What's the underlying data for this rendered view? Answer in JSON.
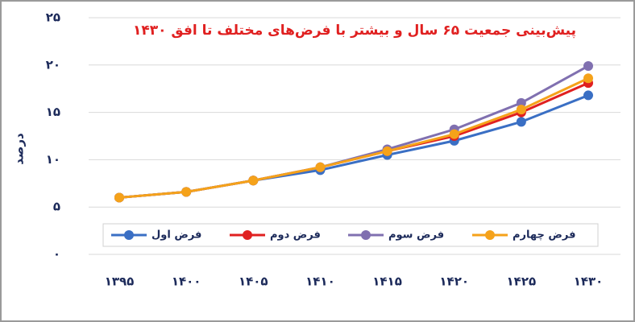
{
  "chart_data": {
    "type": "line",
    "title": "پیش‌بینی جمعیت ۶۵ سال و بیشتر با فرض‌های مختلف تا افق ۱۴۳۰",
    "y_label": "درصد",
    "categories": [
      "۱۳۹۵",
      "۱۴۰۰",
      "۱۴۰۵",
      "۱۴۱۰",
      "۱۴۱۵",
      "۱۴۲۰",
      "۱۴۲۵",
      "۱۴۳۰"
    ],
    "series": [
      {
        "name": "فرض اول",
        "color": "#3a6fc4",
        "values": [
          6.0,
          6.6,
          7.8,
          8.9,
          10.5,
          12.0,
          14.0,
          16.8
        ]
      },
      {
        "name": "فرض دوم",
        "color": "#e02020",
        "values": [
          6.0,
          6.6,
          7.8,
          9.2,
          10.9,
          12.5,
          15.0,
          18.1
        ]
      },
      {
        "name": "فرض سوم",
        "color": "#8070b0",
        "values": [
          6.0,
          6.6,
          7.8,
          9.2,
          11.1,
          13.2,
          16.0,
          19.9
        ]
      },
      {
        "name": "فرض چهارم",
        "color": "#f5a21a",
        "values": [
          6.0,
          6.6,
          7.8,
          9.2,
          10.9,
          12.7,
          15.3,
          18.6
        ]
      }
    ],
    "ylim": [
      0,
      25
    ],
    "yticks": [
      {
        "value": 0,
        "label": "۰"
      },
      {
        "value": 5,
        "label": "۵"
      },
      {
        "value": 10,
        "label": "۱۰"
      },
      {
        "value": 15,
        "label": "۱۵"
      },
      {
        "value": 20,
        "label": "۲۰"
      },
      {
        "value": 25,
        "label": "۲۵"
      }
    ],
    "grid": true,
    "legend": "bottom"
  }
}
